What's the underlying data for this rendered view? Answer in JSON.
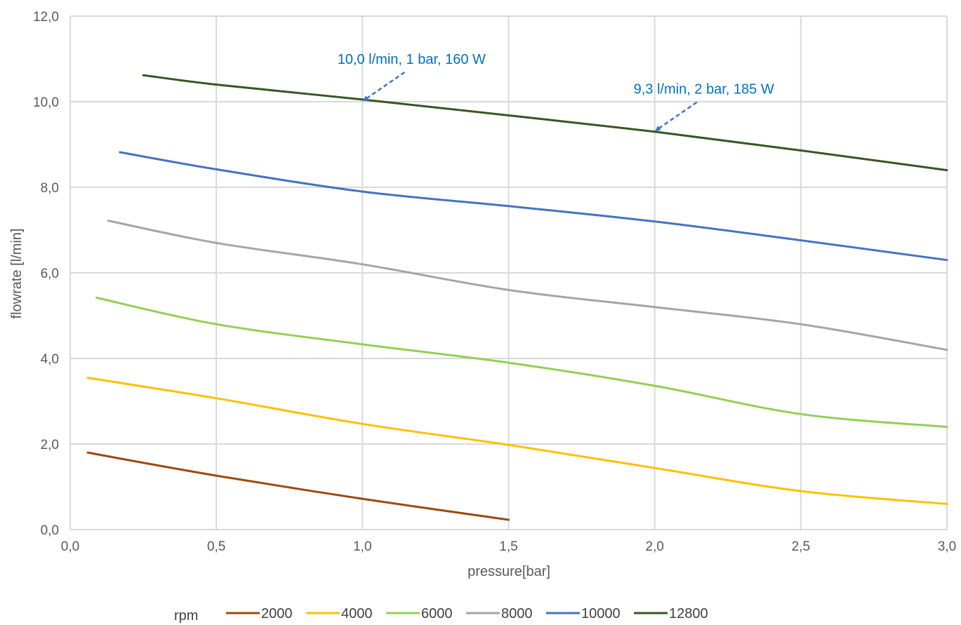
{
  "chart_data": {
    "type": "line",
    "xlabel": "pressure[bar]",
    "ylabel": "flowrate [l/min]",
    "xlim": [
      0,
      3
    ],
    "ylim": [
      0,
      12
    ],
    "x_ticks": [
      "0,0",
      "0,5",
      "1,0",
      "1,5",
      "2,0",
      "2,5",
      "3,0"
    ],
    "y_ticks": [
      "0,0",
      "2,0",
      "4,0",
      "6,0",
      "8,0",
      "10,0",
      "12,0"
    ],
    "grid": true,
    "legend": {
      "title": "rpm",
      "placement": "bottom"
    },
    "series": [
      {
        "name": "2000",
        "color": "#9E480E",
        "points": [
          [
            0.06,
            1.8
          ],
          [
            0.5,
            1.26
          ],
          [
            1.0,
            0.72
          ],
          [
            1.5,
            0.23
          ]
        ]
      },
      {
        "name": "4000",
        "color": "#FFC000",
        "points": [
          [
            0.06,
            3.55
          ],
          [
            0.5,
            3.07
          ],
          [
            1.0,
            2.47
          ],
          [
            1.5,
            1.98
          ],
          [
            2.0,
            1.44
          ],
          [
            2.5,
            0.9
          ],
          [
            3.0,
            0.6
          ]
        ]
      },
      {
        "name": "6000",
        "color": "#92D050",
        "points": [
          [
            0.09,
            5.42
          ],
          [
            0.5,
            4.8
          ],
          [
            1.0,
            4.33
          ],
          [
            1.5,
            3.9
          ],
          [
            2.0,
            3.36
          ],
          [
            2.5,
            2.7
          ],
          [
            3.0,
            2.4
          ]
        ]
      },
      {
        "name": "8000",
        "color": "#A5A5A5",
        "points": [
          [
            0.13,
            7.22
          ],
          [
            0.5,
            6.7
          ],
          [
            1.0,
            6.2
          ],
          [
            1.5,
            5.6
          ],
          [
            2.0,
            5.2
          ],
          [
            2.5,
            4.8
          ],
          [
            3.0,
            4.2
          ]
        ]
      },
      {
        "name": "10000",
        "color": "#4472C4",
        "points": [
          [
            0.17,
            8.82
          ],
          [
            0.5,
            8.42
          ],
          [
            1.0,
            7.9
          ],
          [
            1.5,
            7.56
          ],
          [
            2.0,
            7.2
          ],
          [
            2.5,
            6.76
          ],
          [
            3.0,
            6.3
          ]
        ]
      },
      {
        "name": "12800",
        "color": "#375623",
        "points": [
          [
            0.25,
            10.62
          ],
          [
            0.5,
            10.4
          ],
          [
            1.0,
            10.05
          ],
          [
            1.5,
            9.68
          ],
          [
            2.0,
            9.3
          ],
          [
            2.5,
            8.86
          ],
          [
            3.0,
            8.4
          ]
        ]
      }
    ],
    "annotations": [
      {
        "text": "10,0 l/min, 1 bar, 160 W",
        "x": 1.0,
        "y": 10.0
      },
      {
        "text": "9,3 l/min, 2 bar, 185 W",
        "x": 2.0,
        "y": 9.3
      }
    ],
    "annotation_color": "#0070C0"
  }
}
